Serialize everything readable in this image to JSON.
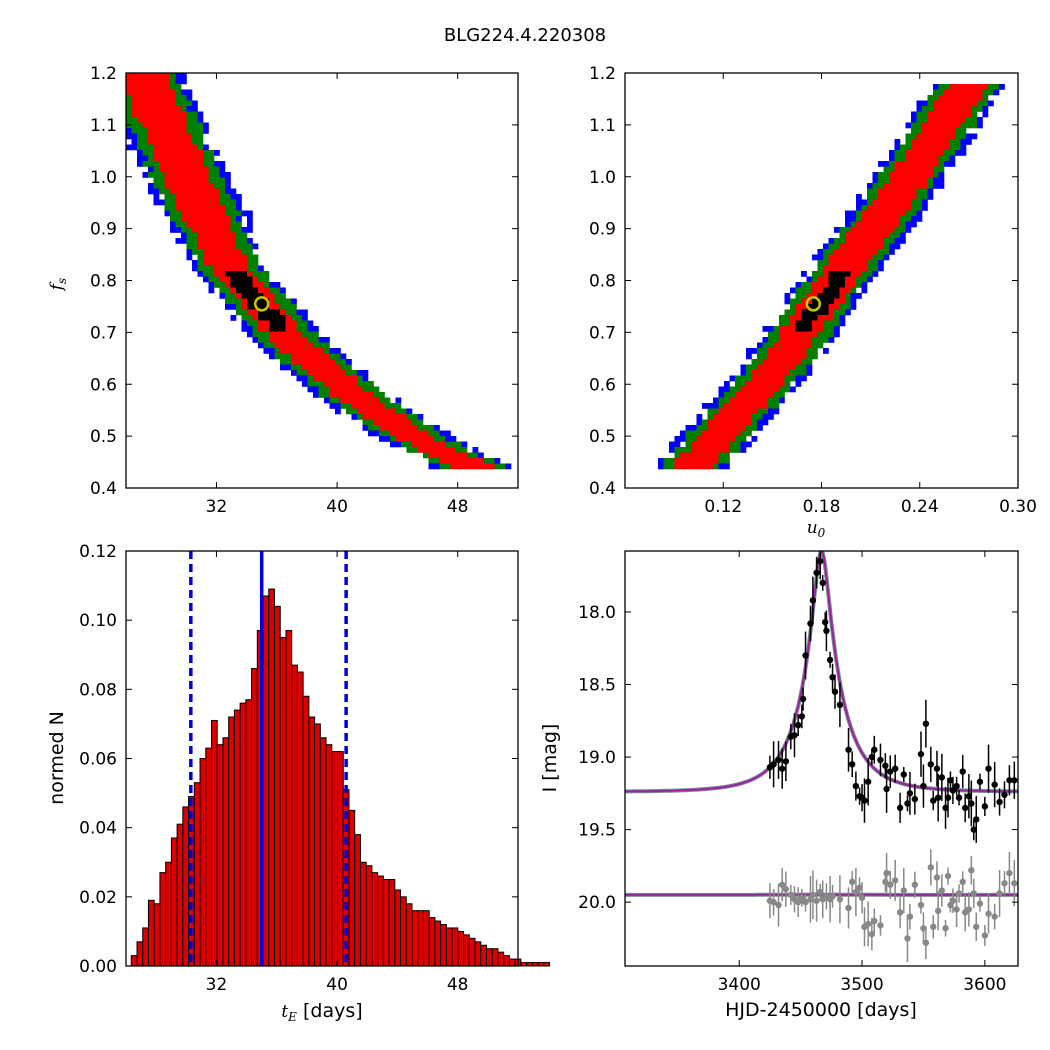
{
  "figure": {
    "title": "BLG224.4.220308"
  },
  "chart_data": [
    {
      "id": "fs_vs_tE",
      "type": "heatmap",
      "description_levels": [
        "black",
        "red",
        "green",
        "blue"
      ],
      "colors": {
        "level1": "#000000",
        "level2": "#ff0000",
        "level3": "#008000",
        "level4": "#0000ff",
        "marker": "#c8c800"
      },
      "xlim": [
        26,
        52
      ],
      "ylim": [
        0.4,
        1.2
      ],
      "xticks": [
        32,
        40,
        48
      ],
      "yticks": [
        0.4,
        0.5,
        0.6,
        0.7,
        0.8,
        0.9,
        1.0,
        1.1,
        1.2
      ],
      "ylabel_main": "f",
      "ylabel_sub": "s",
      "ridge": [
        [
          27,
          1.2
        ],
        [
          30,
          1.0
        ],
        [
          33,
          0.82
        ],
        [
          37,
          0.68
        ],
        [
          41,
          0.58
        ],
        [
          45,
          0.5
        ],
        [
          49,
          0.44
        ]
      ],
      "best_fit": {
        "x": 35.0,
        "y": 0.755
      }
    },
    {
      "id": "fs_vs_u0",
      "type": "heatmap",
      "colors": {
        "level1": "#000000",
        "level2": "#ff0000",
        "level3": "#008000",
        "level4": "#0000ff",
        "marker": "#c8c800"
      },
      "xlim": [
        0.06,
        0.3
      ],
      "ylim": [
        0.4,
        1.2
      ],
      "xticks": [
        0.12,
        0.18,
        0.24,
        0.3
      ],
      "yticks": [
        0.4,
        0.5,
        0.6,
        0.7,
        0.8,
        0.9,
        1.0,
        1.1,
        1.2
      ],
      "xlabel_main": "u",
      "xlabel_sub": "0",
      "ridge": [
        [
          0.1,
          0.44
        ],
        [
          0.15,
          0.62
        ],
        [
          0.18,
          0.76
        ],
        [
          0.21,
          0.89
        ],
        [
          0.24,
          1.03
        ],
        [
          0.27,
          1.18
        ]
      ],
      "best_fit": {
        "x": 0.175,
        "y": 0.755
      }
    },
    {
      "id": "tE_histogram",
      "type": "bar",
      "xlim": [
        26,
        52
      ],
      "ylim": [
        0,
        0.12
      ],
      "xticks": [
        32,
        40,
        48
      ],
      "yticks": [
        0.0,
        0.02,
        0.04,
        0.06,
        0.08,
        0.1,
        0.12
      ],
      "xlabel_main": "t",
      "xlabel_sub": "E",
      "xlabel_unit": " [days]",
      "ylabel": "normed N",
      "bar_color": "#dd0000",
      "bin_start": 26.35,
      "bin_width": 0.38,
      "values": [
        0.003,
        0.007,
        0.011,
        0.019,
        0.018,
        0.027,
        0.03,
        0.037,
        0.041,
        0.046,
        0.049,
        0.053,
        0.06,
        0.063,
        0.071,
        0.064,
        0.066,
        0.072,
        0.074,
        0.076,
        0.077,
        0.086,
        0.097,
        0.107,
        0.109,
        0.104,
        0.095,
        0.097,
        0.087,
        0.085,
        0.078,
        0.072,
        0.07,
        0.066,
        0.064,
        0.062,
        0.062,
        0.051,
        0.045,
        0.038,
        0.03,
        0.029,
        0.027,
        0.026,
        0.025,
        0.025,
        0.022,
        0.02,
        0.018,
        0.016,
        0.016,
        0.016,
        0.014,
        0.013,
        0.012,
        0.011,
        0.011,
        0.01,
        0.009,
        0.008,
        0.007,
        0.006,
        0.005,
        0.005,
        0.004,
        0.003,
        0.002,
        0.002,
        0.001,
        0.001,
        0.001,
        0.001,
        0.001
      ],
      "median": 35.0,
      "lower": 30.3,
      "upper": 40.6,
      "line_color": "#0000dd"
    },
    {
      "id": "lightcurve",
      "type": "scatter",
      "xlim": [
        3307,
        3627
      ],
      "ylim": [
        20.44,
        17.58
      ],
      "xticks": [
        3400,
        3500,
        3600
      ],
      "yticks": [
        18.0,
        18.5,
        19.0,
        19.5,
        20.0
      ],
      "ytick_labels": [
        "18.0",
        "18.5",
        "19.0",
        "19.5",
        "20.0"
      ],
      "xlabel": "HJD-2450000 [days]",
      "ylabel": "I [mag]",
      "model": {
        "t0": 3467,
        "u0": 0.175,
        "tE": 35.0,
        "base_mag": 19.24,
        "fs": 0.755,
        "color": "#a020a0",
        "gray_color": "#7a8a9a"
      },
      "residual_offset": 19.95,
      "series": [
        {
          "color": "#000000",
          "points": [
            [
              3425,
              19.07
            ],
            [
              3428,
              19.05
            ],
            [
              3432,
              19.02
            ],
            [
              3435,
              19.08
            ],
            [
              3438,
              19.03
            ],
            [
              3442,
              18.86
            ],
            [
              3445,
              18.85
            ],
            [
              3448,
              18.78
            ],
            [
              3451,
              18.72
            ],
            [
              3452,
              18.6
            ],
            [
              3454,
              18.3
            ],
            [
              3458,
              18.08
            ],
            [
              3460,
              17.92
            ],
            [
              3463,
              17.73
            ],
            [
              3466,
              17.65
            ],
            [
              3468,
              17.8
            ],
            [
              3470,
              18.07
            ],
            [
              3471,
              18.13
            ],
            [
              3474,
              18.33
            ],
            [
              3476,
              18.45
            ],
            [
              3478,
              18.55
            ],
            [
              3482,
              18.64
            ],
            [
              3489,
              18.95
            ],
            [
              3492,
              19.05
            ],
            [
              3495,
              19.2
            ],
            [
              3498,
              19.27
            ],
            [
              3500,
              19.28
            ],
            [
              3502,
              19.3
            ],
            [
              3505,
              19.17
            ],
            [
              3508,
              19.0
            ],
            [
              3510,
              18.95
            ],
            [
              3515,
              19.02
            ],
            [
              3519,
              19.06
            ],
            [
              3520,
              19.22
            ],
            [
              3523,
              19.1
            ],
            [
              3527,
              19.08
            ],
            [
              3531,
              19.35
            ],
            [
              3534,
              19.12
            ],
            [
              3537,
              19.32
            ],
            [
              3539,
              19.25
            ],
            [
              3543,
              19.29
            ],
            [
              3548,
              18.98
            ],
            [
              3550,
              19.2
            ],
            [
              3552,
              18.77
            ],
            [
              3556,
              19.05
            ],
            [
              3558,
              19.3
            ],
            [
              3561,
              19.08
            ],
            [
              3562,
              19.28
            ],
            [
              3565,
              19.14
            ],
            [
              3568,
              19.35
            ],
            [
              3570,
              19.28
            ],
            [
              3572,
              19.16
            ],
            [
              3574,
              19.23
            ],
            [
              3577,
              19.2
            ],
            [
              3579,
              19.28
            ],
            [
              3582,
              19.1
            ],
            [
              3584,
              19.35
            ],
            [
              3587,
              19.27
            ],
            [
              3589,
              19.32
            ],
            [
              3591,
              19.5
            ],
            [
              3593,
              19.43
            ],
            [
              3596,
              19.17
            ],
            [
              3600,
              19.34
            ],
            [
              3603,
              19.08
            ],
            [
              3608,
              19.19
            ],
            [
              3612,
              19.31
            ],
            [
              3616,
              19.26
            ],
            [
              3620,
              19.16
            ],
            [
              3624,
              19.16
            ]
          ]
        },
        {
          "color": "#888888",
          "points": [
            [
              3425,
              19.99
            ],
            [
              3428,
              20.0
            ],
            [
              3432,
              20.02
            ],
            [
              3435,
              19.88
            ],
            [
              3438,
              19.91
            ],
            [
              3442,
              19.95
            ],
            [
              3445,
              19.98
            ],
            [
              3448,
              20.0
            ],
            [
              3451,
              19.97
            ],
            [
              3454,
              20.0
            ],
            [
              3458,
              19.98
            ],
            [
              3460,
              19.95
            ],
            [
              3463,
              19.99
            ],
            [
              3466,
              19.93
            ],
            [
              3468,
              19.98
            ],
            [
              3471,
              19.96
            ],
            [
              3474,
              19.98
            ],
            [
              3476,
              19.96
            ],
            [
              3482,
              19.98
            ],
            [
              3489,
              20.04
            ],
            [
              3492,
              19.86
            ],
            [
              3495,
              19.93
            ],
            [
              3498,
              19.9
            ],
            [
              3500,
              19.97
            ],
            [
              3502,
              20.17
            ],
            [
              3505,
              20.15
            ],
            [
              3508,
              20.22
            ],
            [
              3510,
              20.13
            ],
            [
              3515,
              20.16
            ],
            [
              3519,
              19.86
            ],
            [
              3520,
              19.8
            ],
            [
              3523,
              19.88
            ],
            [
              3527,
              19.85
            ],
            [
              3531,
              20.07
            ],
            [
              3534,
              19.92
            ],
            [
              3537,
              20.25
            ],
            [
              3539,
              20.1
            ],
            [
              3543,
              19.88
            ],
            [
              3548,
              20.02
            ],
            [
              3550,
              20.18
            ],
            [
              3552,
              20.28
            ],
            [
              3556,
              19.76
            ],
            [
              3558,
              20.17
            ],
            [
              3561,
              19.83
            ],
            [
              3562,
              20.06
            ],
            [
              3565,
              19.92
            ],
            [
              3568,
              20.18
            ],
            [
              3570,
              19.82
            ],
            [
              3572,
              20.02
            ],
            [
              3574,
              19.99
            ],
            [
              3577,
              20.05
            ],
            [
              3579,
              19.94
            ],
            [
              3582,
              19.86
            ],
            [
              3584,
              20.07
            ],
            [
              3587,
              20.05
            ],
            [
              3589,
              19.78
            ],
            [
              3591,
              19.94
            ],
            [
              3593,
              20.17
            ],
            [
              3596,
              20.01
            ],
            [
              3600,
              20.23
            ],
            [
              3603,
              20.08
            ],
            [
              3608,
              20.1
            ],
            [
              3612,
              19.94
            ],
            [
              3616,
              19.87
            ],
            [
              3620,
              19.8
            ],
            [
              3624,
              19.87
            ]
          ]
        }
      ]
    }
  ]
}
